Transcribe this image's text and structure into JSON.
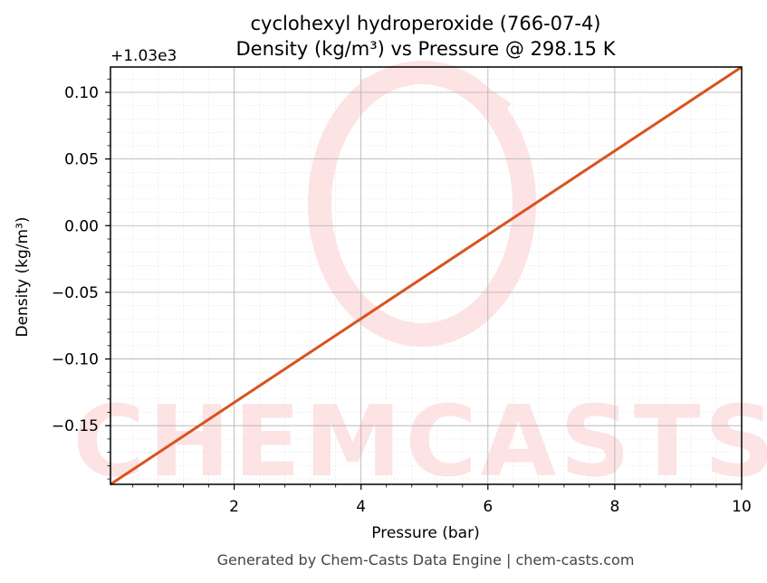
{
  "chart_data": {
    "type": "line",
    "title": "cyclohexyl hydroperoxide (766-07-4)",
    "subtitle": "Density (kg/m³) vs Pressure @ 298.15 K",
    "xlabel": "Pressure (bar)",
    "ylabel": "Density (kg/m³)",
    "y_offset_label": "+1.03e3",
    "xlim": [
      0.05,
      10
    ],
    "ylim": [
      -0.194,
      0.119
    ],
    "x_ticks": [
      2,
      4,
      6,
      8,
      10
    ],
    "x_tick_labels": [
      "2",
      "4",
      "6",
      "8",
      "10"
    ],
    "y_ticks": [
      0.1,
      0.05,
      0.0,
      -0.05,
      -0.1,
      -0.15
    ],
    "y_tick_labels": [
      "0.10",
      "0.05",
      "0.00",
      "−0.05",
      "−0.10",
      "−0.15"
    ],
    "grid": true,
    "series": [
      {
        "color": "#d9531e",
        "x": [
          0.05,
          10
        ],
        "y": [
          -0.194,
          0.119
        ]
      }
    ]
  },
  "watermark": {
    "text": "CHEMCASTS",
    "color": "#fde3e3"
  },
  "footer": "Generated by Chem-Casts Data Engine | chem-casts.com"
}
